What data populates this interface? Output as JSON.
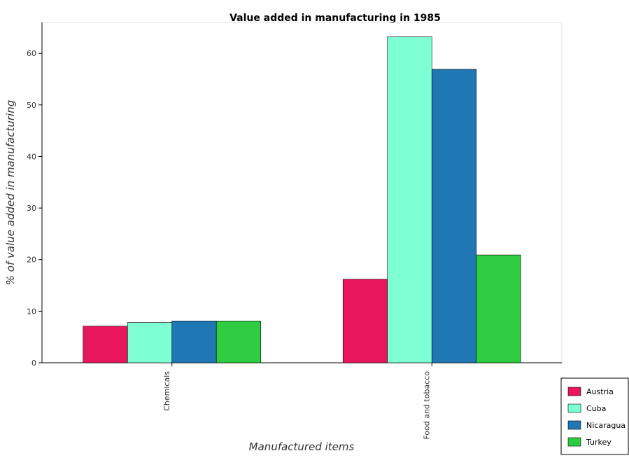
{
  "chart_data": {
    "type": "bar",
    "title": "Value added in manufacturing in 1985",
    "xlabel": "Manufactured items",
    "ylabel": "% of value added in manufacturing",
    "categories": [
      "Chemicals",
      "Food and tobacco"
    ],
    "series": [
      {
        "name": "Austria",
        "color": "#e8175d",
        "values": [
          7.1,
          16.2
        ]
      },
      {
        "name": "Cuba",
        "color": "#7fffd4",
        "values": [
          7.8,
          63.2
        ]
      },
      {
        "name": "Nicaragua",
        "color": "#1f77b4",
        "values": [
          8.1,
          56.9
        ]
      },
      {
        "name": "Turkey",
        "color": "#2ecc40",
        "values": [
          8.1,
          20.9
        ]
      }
    ],
    "ylim": [
      0,
      66
    ],
    "yticks": [
      0,
      10,
      20,
      30,
      40,
      50,
      60
    ],
    "grid": false,
    "legend_position": "bottom-right"
  }
}
